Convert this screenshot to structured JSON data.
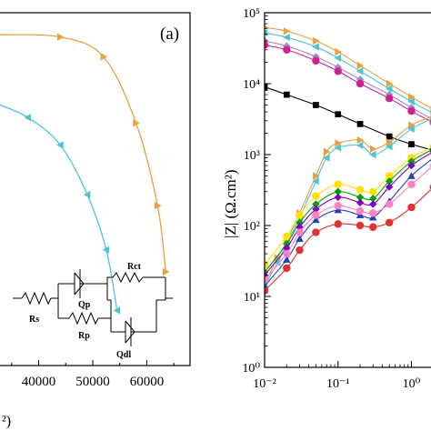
{
  "left_panel": {
    "label": "(a)",
    "x_ticks": [
      "40000",
      "50000",
      "60000"
    ],
    "x_label_fragment": "²)",
    "circuit": {
      "labels": [
        "Rs",
        "Qp",
        "Rct",
        "Rp",
        "Qdl"
      ]
    }
  },
  "right_panel": {
    "ylabel": "|Z| (Ω.cm²)",
    "y_ticks": [
      "10⁰",
      "10¹",
      "10²",
      "10³",
      "10⁴",
      "10⁵"
    ],
    "x_ticks": [
      "10⁻²",
      "10⁻¹",
      "10⁰"
    ]
  },
  "chart_data": [
    {
      "type": "line",
      "panel": "left (Nyquist, cropped)",
      "x_axis_label_visible": "²)",
      "xlim": [
        32000,
        68000
      ],
      "ylim": [
        0,
        32000
      ],
      "series": [
        {
          "color": "#e8a040",
          "marker": "triangle-right",
          "points": [
            [
              32000,
              30000
            ],
            [
              44000,
              29800
            ],
            [
              52000,
              28000
            ],
            [
              58000,
              22000
            ],
            [
              62000,
              14500
            ],
            [
              63500,
              8500
            ]
          ]
        },
        {
          "color": "#4fc4d0",
          "marker": "triangle-left",
          "points": [
            [
              32000,
              23800
            ],
            [
              38000,
              22500
            ],
            [
              44000,
              20000
            ],
            [
              49000,
              15500
            ],
            [
              52500,
              10500
            ],
            [
              54500,
              5000
            ]
          ]
        }
      ]
    },
    {
      "type": "scatter",
      "panel": "right (Bode |Z|, cropped)",
      "xscale": "log",
      "yscale": "log",
      "xlim": [
        0.01,
        3
      ],
      "ylim": [
        1,
        100000
      ],
      "ylabel": "|Z| (Ω.cm²)",
      "series": [
        {
          "color": "#000000",
          "marker": "square",
          "points": [
            [
              0.01,
              9000
            ],
            [
              0.02,
              7000
            ],
            [
              0.05,
              5000
            ],
            [
              0.1,
              3700
            ],
            [
              0.2,
              2700
            ],
            [
              0.5,
              1800
            ],
            [
              1,
              1400
            ],
            [
              2,
              1150
            ]
          ]
        },
        {
          "color": "#e8a040",
          "marker": "triangle-right",
          "points": [
            [
              0.01,
              62000
            ],
            [
              0.02,
              55000
            ],
            [
              0.05,
              40000
            ],
            [
              0.1,
              28000
            ],
            [
              0.2,
              18000
            ],
            [
              0.5,
              10000
            ],
            [
              1,
              6500
            ],
            [
              2,
              4300
            ]
          ]
        },
        {
          "color": "#4fc4d0",
          "marker": "triangle-left",
          "points": [
            [
              0.01,
              52000
            ],
            [
              0.02,
              45000
            ],
            [
              0.05,
              33000
            ],
            [
              0.1,
              23000
            ],
            [
              0.2,
              15000
            ],
            [
              0.5,
              8500
            ],
            [
              1,
              5600
            ],
            [
              2,
              3800
            ]
          ]
        },
        {
          "color": "#9c8ec0",
          "marker": "diamond",
          "points": [
            [
              0.01,
              40000
            ],
            [
              0.02,
              34000
            ],
            [
              0.05,
              24000
            ],
            [
              0.1,
              17000
            ],
            [
              0.2,
              11500
            ],
            [
              0.5,
              7000
            ],
            [
              1,
              4600
            ],
            [
              2,
              3100
            ]
          ]
        },
        {
          "color": "#d02090",
          "marker": "circle",
          "points": [
            [
              0.01,
              35000
            ],
            [
              0.02,
              30000
            ],
            [
              0.05,
              21000
            ],
            [
              0.1,
              15000
            ],
            [
              0.2,
              10000
            ],
            [
              0.5,
              6200
            ],
            [
              1,
              4100
            ],
            [
              2,
              2800
            ]
          ]
        },
        {
          "color": "#e8a040",
          "marker": "triangle-right",
          "note": "lower phase-like branch",
          "points": [
            [
              0.01,
              15
            ],
            [
              0.015,
              35
            ],
            [
              0.02,
              60
            ],
            [
              0.03,
              150
            ],
            [
              0.05,
              500
            ],
            [
              0.07,
              1100
            ],
            [
              0.1,
              1450
            ],
            [
              0.2,
              1600
            ],
            [
              0.3,
              1200
            ],
            [
              0.5,
              1500
            ],
            [
              1,
              2600
            ],
            [
              2,
              3500
            ]
          ]
        },
        {
          "color": "#4fc4d0",
          "marker": "triangle-left",
          "points": [
            [
              0.01,
              14
            ],
            [
              0.015,
              30
            ],
            [
              0.02,
              55
            ],
            [
              0.03,
              130
            ],
            [
              0.05,
              420
            ],
            [
              0.07,
              900
            ],
            [
              0.1,
              1250
            ],
            [
              0.2,
              1350
            ],
            [
              0.3,
              1000
            ],
            [
              0.5,
              1300
            ],
            [
              1,
              2300
            ],
            [
              2,
              3300
            ]
          ]
        },
        {
          "color": "#ffe000",
          "marker": "circle",
          "points": [
            [
              0.01,
              28
            ],
            [
              0.02,
              70
            ],
            [
              0.03,
              140
            ],
            [
              0.05,
              260
            ],
            [
              0.1,
              380
            ],
            [
              0.2,
              320
            ],
            [
              0.3,
              300
            ],
            [
              0.5,
              500
            ],
            [
              1,
              900
            ],
            [
              2,
              1300
            ]
          ]
        },
        {
          "color": "#00a000",
          "marker": "diamond",
          "points": [
            [
              0.01,
              22
            ],
            [
              0.02,
              55
            ],
            [
              0.03,
              110
            ],
            [
              0.05,
              200
            ],
            [
              0.1,
              300
            ],
            [
              0.2,
              250
            ],
            [
              0.3,
              240
            ],
            [
              0.5,
              420
            ],
            [
              1,
              800
            ],
            [
              2,
              1200
            ]
          ]
        },
        {
          "color": "#8000c0",
          "marker": "diamond",
          "points": [
            [
              0.01,
              20
            ],
            [
              0.02,
              48
            ],
            [
              0.03,
              95
            ],
            [
              0.05,
              170
            ],
            [
              0.1,
              250
            ],
            [
              0.2,
              210
            ],
            [
              0.3,
              200
            ],
            [
              0.5,
              350
            ],
            [
              1,
              700
            ],
            [
              2,
              1100
            ]
          ]
        },
        {
          "color": "#2040c0",
          "marker": "triangle-up",
          "points": [
            [
              0.01,
              14
            ],
            [
              0.02,
              33
            ],
            [
              0.03,
              65
            ],
            [
              0.05,
              120
            ],
            [
              0.1,
              165
            ],
            [
              0.2,
              140
            ],
            [
              0.3,
              130
            ],
            [
              0.5,
              220
            ],
            [
              1,
              500
            ],
            [
              2,
              900
            ]
          ]
        },
        {
          "color": "#ff80c0",
          "marker": "circle",
          "points": [
            [
              0.01,
              17
            ],
            [
              0.02,
              40
            ],
            [
              0.03,
              80
            ],
            [
              0.05,
              140
            ],
            [
              0.1,
              190
            ],
            [
              0.2,
              160
            ],
            [
              0.3,
              150
            ],
            [
              0.5,
              200
            ],
            [
              1,
              380
            ],
            [
              2,
              700
            ]
          ]
        },
        {
          "color": "#e03030",
          "marker": "circle",
          "points": [
            [
              0.01,
              12
            ],
            [
              0.02,
              25
            ],
            [
              0.03,
              45
            ],
            [
              0.05,
              80
            ],
            [
              0.1,
              105
            ],
            [
              0.2,
              100
            ],
            [
              0.3,
              95
            ],
            [
              0.5,
              110
            ],
            [
              1,
              180
            ],
            [
              2,
              350
            ]
          ]
        }
      ]
    }
  ]
}
